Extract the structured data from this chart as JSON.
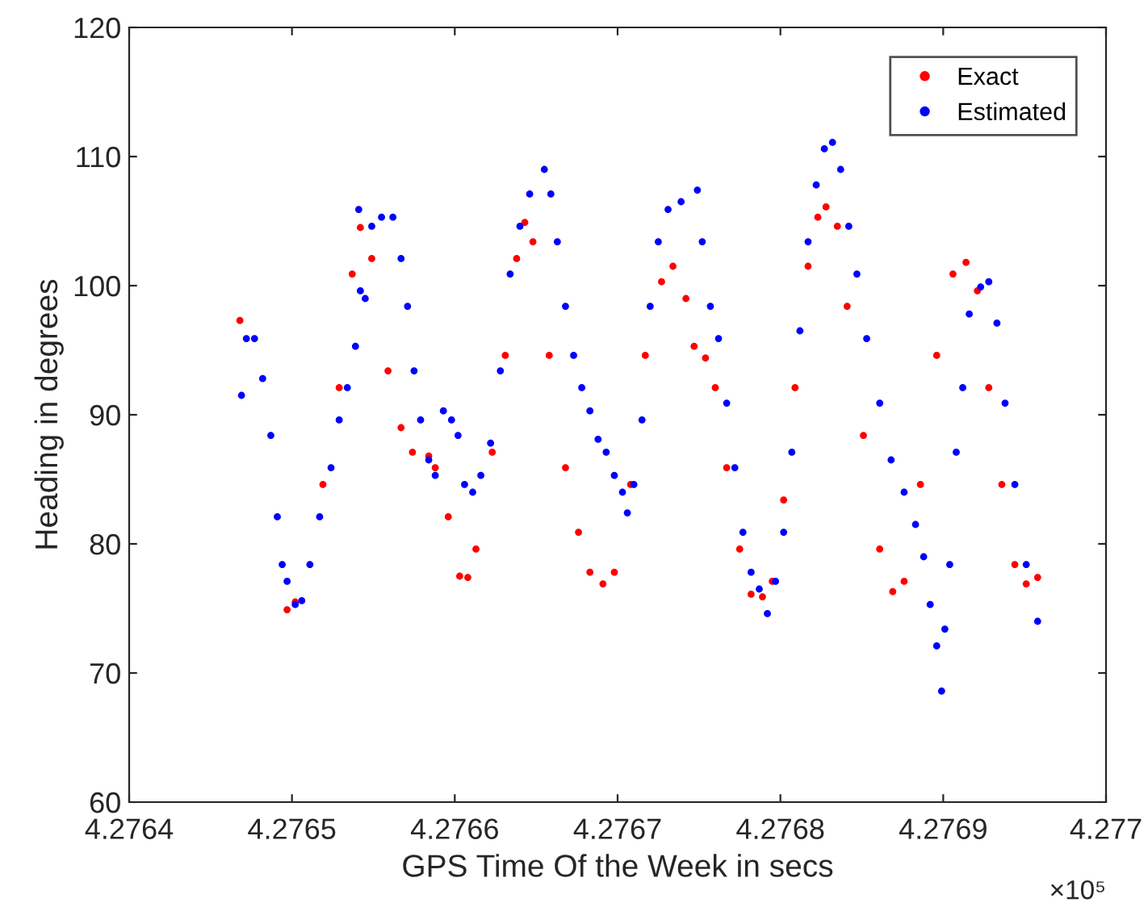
{
  "chart_data": {
    "type": "scatter",
    "xlabel": "GPS Time Of the Week in secs",
    "ylabel": "Heading in degrees",
    "annotations": [
      "×10⁵"
    ],
    "xlim": [
      4.2764,
      4.277
    ],
    "xticks": [
      4.2764,
      4.2765,
      4.2766,
      4.2767,
      4.2768,
      4.2769,
      4.277
    ],
    "ylim": [
      60,
      120
    ],
    "yticks": [
      60,
      70,
      80,
      90,
      100,
      110,
      120
    ],
    "legend": "top right",
    "marker": "circle",
    "series": [
      {
        "name": "Exact",
        "color": "#ff0000",
        "x": [
          4.276468,
          4.276497,
          4.276502,
          4.276519,
          4.276529,
          4.276537,
          4.276542,
          4.276549,
          4.276559,
          4.276567,
          4.276574,
          4.276584,
          4.276588,
          4.276596,
          4.276603,
          4.276608,
          4.276613,
          4.276623,
          4.276631,
          4.276638,
          4.276643,
          4.276648,
          4.276658,
          4.276668,
          4.276676,
          4.276683,
          4.276691,
          4.276698,
          4.276708,
          4.276717,
          4.276727,
          4.276734,
          4.276742,
          4.276747,
          4.276754,
          4.27676,
          4.276767,
          4.276775,
          4.276782,
          4.276789,
          4.276795,
          4.276802,
          4.276809,
          4.276817,
          4.276823,
          4.276828,
          4.276835,
          4.276841,
          4.276851,
          4.276861,
          4.276869,
          4.276876,
          4.276886,
          4.276896,
          4.276906,
          4.276914,
          4.276921,
          4.276928,
          4.276936,
          4.276944,
          4.276951,
          4.276958
        ],
        "values": [
          97.3,
          74.9,
          75.5,
          84.6,
          92.1,
          100.9,
          104.5,
          102.1,
          93.4,
          89,
          87.1,
          86.8,
          85.9,
          82.1,
          77.5,
          77.4,
          79.6,
          87.1,
          94.6,
          102.1,
          104.9,
          103.4,
          94.6,
          85.9,
          80.9,
          77.8,
          76.9,
          77.8,
          84.6,
          94.6,
          100.3,
          101.5,
          99,
          95.3,
          94.4,
          92.1,
          85.9,
          79.6,
          76.1,
          75.9,
          77.1,
          83.4,
          92.1,
          101.5,
          105.3,
          106.1,
          104.6,
          98.4,
          88.4,
          79.6,
          76.3,
          77.1,
          84.6,
          94.6,
          100.9,
          101.8,
          99.6,
          92.1,
          84.6,
          78.4,
          76.9,
          77.4
        ]
      },
      {
        "name": "Estimated",
        "color": "#0000ff",
        "x": [
          4.276469,
          4.276472,
          4.276477,
          4.276482,
          4.276487,
          4.276491,
          4.276494,
          4.276497,
          4.276502,
          4.276506,
          4.276511,
          4.276517,
          4.276524,
          4.276529,
          4.276534,
          4.276539,
          4.276541,
          4.276542,
          4.276545,
          4.276549,
          4.276555,
          4.276562,
          4.276567,
          4.276571,
          4.276575,
          4.276579,
          4.276584,
          4.276588,
          4.276593,
          4.276598,
          4.276602,
          4.276606,
          4.276611,
          4.276616,
          4.276622,
          4.276628,
          4.276634,
          4.27664,
          4.276646,
          4.276655,
          4.276659,
          4.276663,
          4.276668,
          4.276673,
          4.276678,
          4.276683,
          4.276688,
          4.276693,
          4.276698,
          4.276703,
          4.276706,
          4.27671,
          4.276715,
          4.27672,
          4.276725,
          4.276731,
          4.276739,
          4.276749,
          4.276752,
          4.276757,
          4.276762,
          4.276767,
          4.276772,
          4.276777,
          4.276782,
          4.276787,
          4.276792,
          4.276797,
          4.276802,
          4.276807,
          4.276812,
          4.276817,
          4.276822,
          4.276827,
          4.276832,
          4.276837,
          4.276842,
          4.276847,
          4.276853,
          4.276861,
          4.276868,
          4.276876,
          4.276883,
          4.276888,
          4.276892,
          4.276896,
          4.276899,
          4.276901,
          4.276904,
          4.276908,
          4.276912,
          4.276916,
          4.276923,
          4.276928,
          4.276933,
          4.276938,
          4.276944,
          4.276951,
          4.276958
        ],
        "values": [
          91.5,
          95.9,
          95.9,
          92.8,
          88.4,
          82.1,
          78.4,
          77.1,
          75.3,
          75.6,
          78.4,
          82.1,
          85.9,
          89.6,
          92.1,
          95.3,
          105.9,
          99.6,
          99,
          104.6,
          105.3,
          105.3,
          102.1,
          98.4,
          93.4,
          89.6,
          86.5,
          85.3,
          90.3,
          89.6,
          88.4,
          84.6,
          84,
          85.3,
          87.8,
          93.4,
          100.9,
          104.6,
          107.1,
          109,
          107.1,
          103.4,
          98.4,
          94.6,
          92.1,
          90.3,
          88.1,
          87.1,
          85.3,
          84,
          82.4,
          84.6,
          89.6,
          98.4,
          103.4,
          105.9,
          106.5,
          107.4,
          103.4,
          98.4,
          95.9,
          90.9,
          85.9,
          80.9,
          77.8,
          76.5,
          74.6,
          77.1,
          80.9,
          87.1,
          96.5,
          103.4,
          107.8,
          110.6,
          111.1,
          109,
          104.6,
          100.9,
          95.9,
          90.9,
          86.5,
          84,
          81.5,
          79,
          75.3,
          72.1,
          68.6,
          73.4,
          78.4,
          87.1,
          92.1,
          97.8,
          99.9,
          100.3,
          97.1,
          90.9,
          84.6,
          78.4,
          74
        ]
      }
    ]
  }
}
